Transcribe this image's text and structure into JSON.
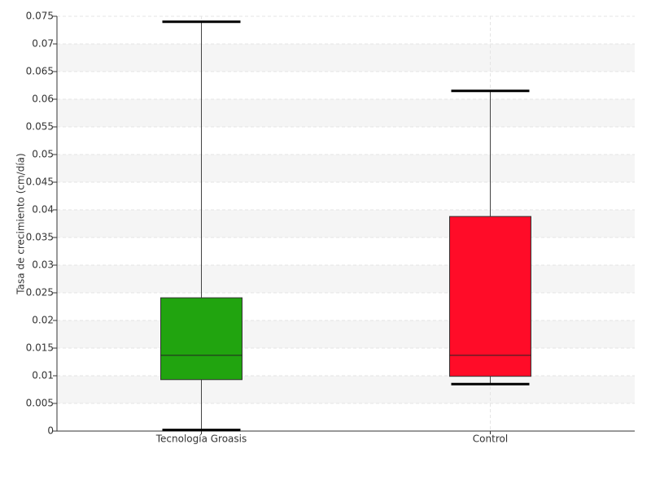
{
  "chart_data": {
    "type": "box",
    "ylabel": "Tasa de crecimiento (cm/día)",
    "categories": [
      "Tecnología Groasis",
      "Control"
    ],
    "boxes": [
      {
        "min": 0.0002,
        "q1": 0.0093,
        "median": 0.0137,
        "q3": 0.0241,
        "max": 0.074,
        "color": "#21a40f"
      },
      {
        "min": 0.0085,
        "q1": 0.0099,
        "median": 0.0137,
        "q3": 0.0388,
        "max": 0.0615,
        "color": "#ff0c28"
      }
    ],
    "ylim": [
      0,
      0.075
    ],
    "yticks": [
      0,
      0.005,
      0.01,
      0.015,
      0.02,
      0.025,
      0.03,
      0.035,
      0.04,
      0.045,
      0.05,
      0.055,
      0.06,
      0.065,
      0.07,
      0.075
    ],
    "grid": true
  }
}
